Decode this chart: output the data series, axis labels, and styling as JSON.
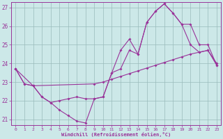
{
  "xlabel": "Windchill (Refroidissement éolien,°C)",
  "bg_color": "#cce8e8",
  "line_color": "#993399",
  "grid_color": "#99bbbb",
  "xlim": [
    -0.5,
    23.5
  ],
  "ylim": [
    20.7,
    27.3
  ],
  "yticks": [
    21,
    22,
    23,
    24,
    25,
    26,
    27
  ],
  "xticks": [
    0,
    1,
    2,
    3,
    4,
    5,
    6,
    7,
    8,
    9,
    10,
    11,
    12,
    13,
    14,
    15,
    16,
    17,
    18,
    19,
    20,
    21,
    22,
    23
  ],
  "line1_x": [
    0,
    1,
    2,
    3,
    4,
    5,
    6,
    7,
    8,
    9,
    10,
    11,
    12,
    13,
    14,
    15,
    16,
    17,
    18,
    19,
    20,
    21,
    22,
    23
  ],
  "line1_y": [
    23.7,
    22.9,
    22.8,
    22.2,
    21.9,
    21.5,
    21.2,
    20.9,
    20.8,
    22.1,
    22.2,
    23.5,
    23.7,
    24.7,
    24.5,
    26.2,
    26.8,
    27.2,
    26.7,
    26.1,
    25.0,
    24.6,
    24.7,
    23.9
  ],
  "line2_x": [
    0,
    2,
    9,
    10,
    11,
    12,
    13,
    14,
    15,
    16,
    17,
    18,
    19,
    20,
    21,
    22,
    23
  ],
  "line2_y": [
    23.7,
    22.8,
    22.9,
    23.0,
    23.15,
    23.3,
    23.45,
    23.6,
    23.75,
    23.9,
    24.05,
    24.2,
    24.35,
    24.5,
    24.6,
    24.7,
    24.0
  ],
  "line3_x": [
    0,
    1,
    2,
    3,
    4,
    5,
    6,
    7,
    8,
    9,
    10,
    11,
    12,
    13,
    14,
    15,
    16,
    17,
    18,
    19,
    20,
    21,
    22,
    23
  ],
  "line3_y": [
    23.7,
    22.9,
    22.8,
    22.2,
    21.9,
    22.0,
    22.1,
    22.2,
    22.1,
    22.1,
    22.2,
    23.5,
    24.7,
    25.3,
    24.5,
    26.2,
    26.8,
    27.2,
    26.7,
    26.1,
    26.1,
    25.0,
    25.0,
    23.9
  ]
}
